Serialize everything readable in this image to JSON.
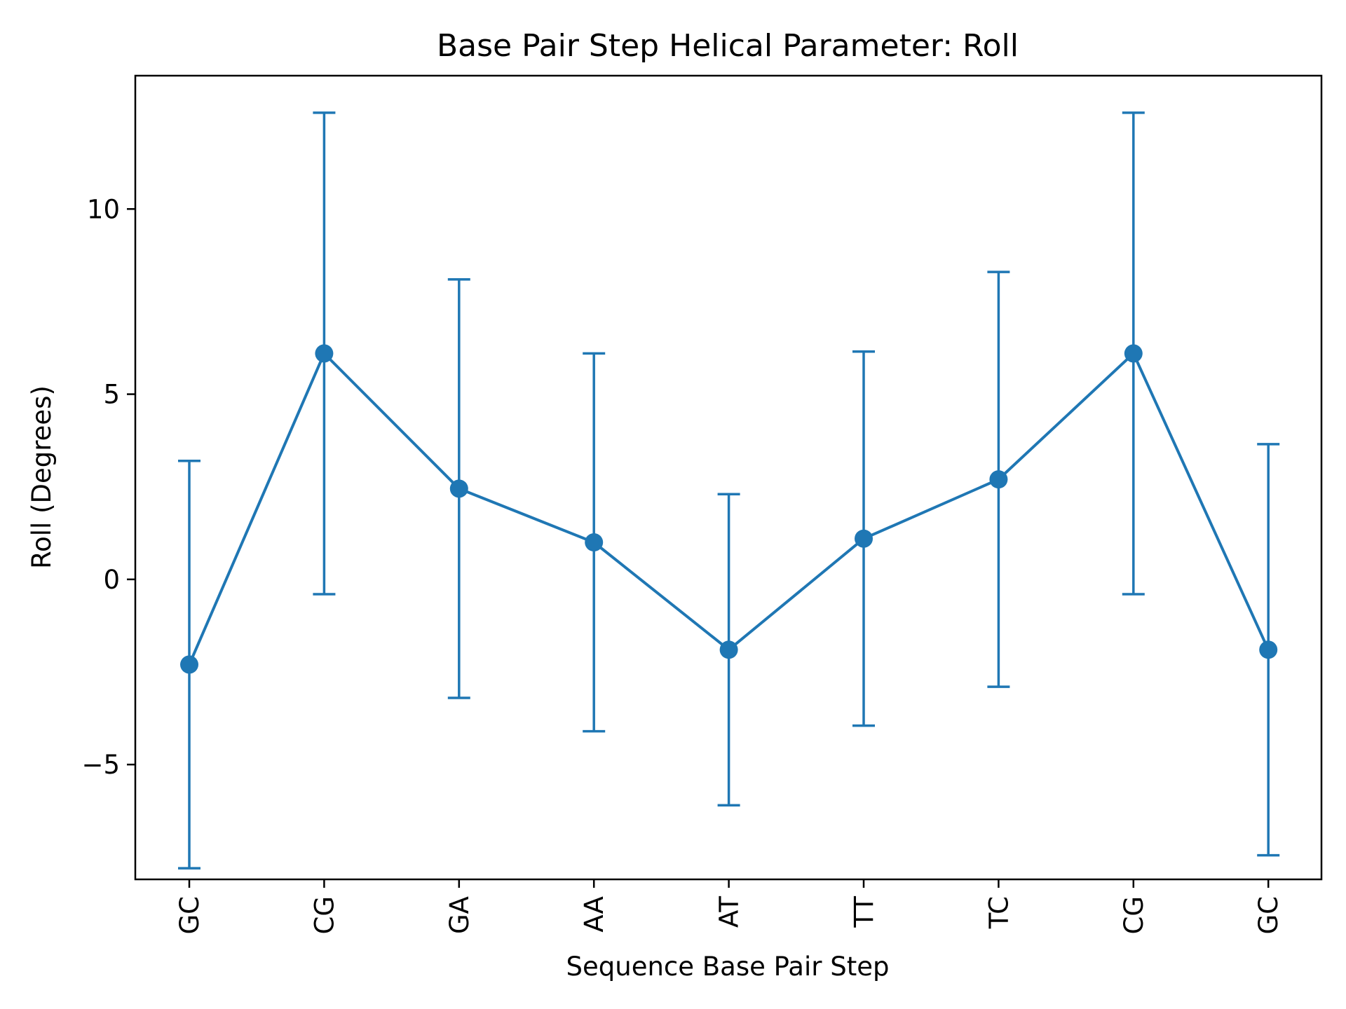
{
  "chart_data": {
    "type": "line",
    "title": "Base Pair Step Helical Parameter: Roll",
    "xlabel": "Sequence Base Pair Step",
    "ylabel": "Roll (Degrees)",
    "categories": [
      "GC",
      "CG",
      "GA",
      "AA",
      "AT",
      "TT",
      "TC",
      "CG",
      "GC"
    ],
    "series": [
      {
        "values": [
          -2.3,
          6.1,
          2.45,
          1.0,
          -1.9,
          1.1,
          2.7,
          6.1,
          -1.9
        ],
        "error": [
          5.5,
          6.5,
          5.65,
          5.1,
          4.2,
          5.05,
          5.6,
          6.5,
          5.55
        ]
      }
    ],
    "yticks": [
      -5,
      0,
      5,
      10
    ],
    "ytick_labels": [
      "−5",
      "0",
      "5",
      "10"
    ],
    "ylim": [
      -8.1,
      13.6
    ],
    "grid": false,
    "colors": {
      "series": "#1f77b4",
      "axes": "#000000"
    }
  }
}
